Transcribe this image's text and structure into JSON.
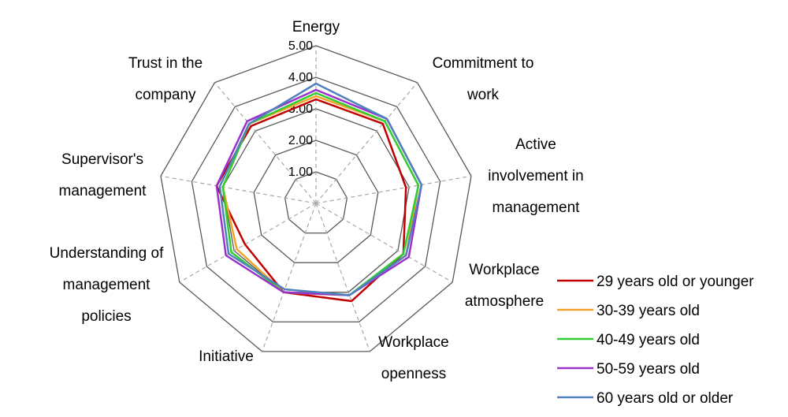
{
  "chart_data": {
    "type": "radar",
    "axes": [
      [
        "Energy"
      ],
      [
        "Commitment to",
        "work"
      ],
      [
        "Active",
        "involvement in",
        "management"
      ],
      [
        "Workplace",
        "atmosphere"
      ],
      [
        "Workplace",
        "openness"
      ],
      [
        "Initiative"
      ],
      [
        "Understanding of",
        "management",
        "policies"
      ],
      [
        "Supervisor's",
        "management"
      ],
      [
        "Trust in the",
        "company"
      ]
    ],
    "range": [
      0,
      5
    ],
    "ticks": [
      "1.00",
      "2.00",
      "3.00",
      "4.00",
      "5.00"
    ],
    "legend_position": "bottom-right",
    "series": [
      {
        "name": "29 years old or younger",
        "color": "#c00000",
        "values": [
          3.3,
          3.3,
          2.9,
          3.2,
          3.3,
          3.0,
          2.6,
          3.2,
          3.2
        ]
      },
      {
        "name": "30-39 years old",
        "color": "#f2a32b",
        "values": [
          3.4,
          3.4,
          3.3,
          3.3,
          3.1,
          3.0,
          2.9,
          3.0,
          3.3
        ]
      },
      {
        "name": "40-49 years old",
        "color": "#33cc33",
        "values": [
          3.5,
          3.4,
          3.3,
          3.2,
          3.1,
          3.0,
          3.1,
          3.0,
          3.3
        ]
      },
      {
        "name": "50-59 years old",
        "color": "#9933cc",
        "values": [
          3.6,
          3.5,
          3.4,
          3.4,
          3.1,
          3.0,
          3.3,
          3.2,
          3.4
        ]
      },
      {
        "name": "60 years old or older",
        "color": "#4f81bd",
        "values": [
          3.8,
          3.5,
          3.4,
          3.3,
          3.1,
          2.9,
          3.2,
          3.1,
          3.3
        ]
      }
    ]
  }
}
